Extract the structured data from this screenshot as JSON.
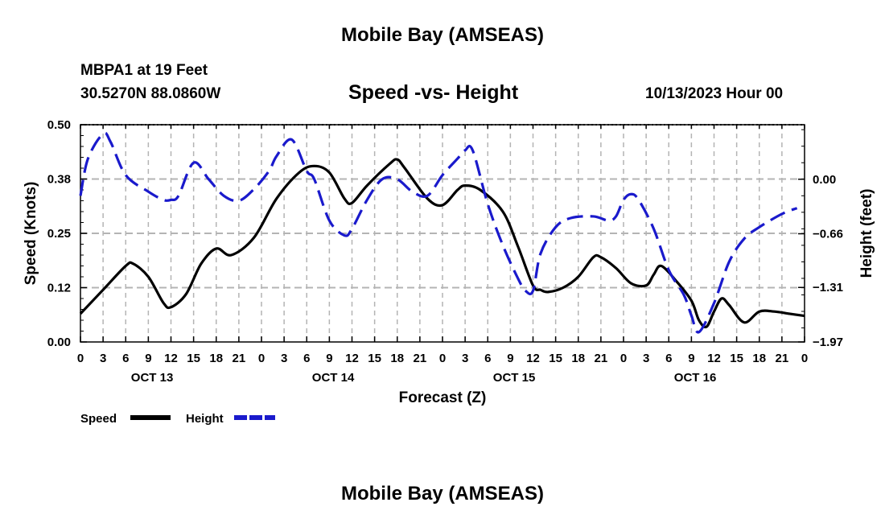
{
  "header": {
    "title": "Mobile Bay (AMSEAS)",
    "station": "MBPA1 at 19 Feet",
    "coordinates": "30.5270N  88.0860W",
    "subtitle": "Speed -vs- Height",
    "datetime": "10/13/2023 Hour 00"
  },
  "footer": {
    "title": "Mobile Bay (AMSEAS)"
  },
  "colors": {
    "speed": "#000000",
    "height": "#1a1acc",
    "grid": "#b4b4b4"
  },
  "chart_data": {
    "type": "line",
    "title": "Speed -vs- Height",
    "xlabel": "Forecast (Z)",
    "ylabel": "Speed (Knots)",
    "y2label": "Height (feet)",
    "xlim": [
      0,
      96
    ],
    "ylim": [
      0,
      0.5
    ],
    "y2lim": [
      -1.97,
      0.66
    ],
    "yticks": [
      0.0,
      0.125,
      0.25,
      0.375,
      0.5
    ],
    "yticklabels": [
      "0.00",
      "0.12",
      "0.25",
      "0.38",
      "0.50"
    ],
    "y2ticks": [
      -1.97,
      -1.31,
      -0.66,
      0.0
    ],
    "y2ticklabels": [
      "−1.97",
      "−1.31",
      "−0.66",
      "0.00"
    ],
    "xticklabels": [
      "0",
      "3",
      "6",
      "9",
      "12",
      "15",
      "18",
      "21",
      "0",
      "3",
      "6",
      "9",
      "12",
      "15",
      "18",
      "21",
      "0",
      "3",
      "6",
      "9",
      "12",
      "15",
      "18",
      "21",
      "0",
      "3",
      "6",
      "9",
      "12",
      "15",
      "18",
      "21",
      "0"
    ],
    "days": [
      {
        "label": "OCT 13",
        "center": 9.5
      },
      {
        "label": "OCT 14",
        "center": 33.5
      },
      {
        "label": "OCT 15",
        "center": 57.5
      },
      {
        "label": "OCT 16",
        "center": 81.5
      }
    ],
    "grid": true,
    "legend_position": "bottom-left",
    "series": [
      {
        "name": "Speed",
        "axis": "left",
        "style": "solid",
        "points": [
          [
            0,
            0.065
          ],
          [
            3,
            0.12
          ],
          [
            6,
            0.175
          ],
          [
            7,
            0.18
          ],
          [
            9,
            0.15
          ],
          [
            11,
            0.09
          ],
          [
            12,
            0.08
          ],
          [
            14,
            0.11
          ],
          [
            16,
            0.18
          ],
          [
            18,
            0.215
          ],
          [
            20,
            0.2
          ],
          [
            23,
            0.24
          ],
          [
            26,
            0.33
          ],
          [
            29,
            0.39
          ],
          [
            31,
            0.405
          ],
          [
            33,
            0.39
          ],
          [
            35,
            0.33
          ],
          [
            36,
            0.32
          ],
          [
            38,
            0.36
          ],
          [
            41,
            0.41
          ],
          [
            42,
            0.42
          ],
          [
            43,
            0.4
          ],
          [
            46,
            0.33
          ],
          [
            48,
            0.315
          ],
          [
            50,
            0.35
          ],
          [
            51,
            0.36
          ],
          [
            53,
            0.35
          ],
          [
            56,
            0.3
          ],
          [
            58,
            0.22
          ],
          [
            60,
            0.13
          ],
          [
            61,
            0.12
          ],
          [
            62,
            0.115
          ],
          [
            64,
            0.125
          ],
          [
            66,
            0.15
          ],
          [
            68,
            0.195
          ],
          [
            69,
            0.195
          ],
          [
            71,
            0.17
          ],
          [
            73,
            0.135
          ],
          [
            75,
            0.13
          ],
          [
            76,
            0.155
          ],
          [
            77,
            0.175
          ],
          [
            79,
            0.14
          ],
          [
            81,
            0.095
          ],
          [
            82,
            0.05
          ],
          [
            83,
            0.035
          ],
          [
            84,
            0.07
          ],
          [
            85,
            0.1
          ],
          [
            86,
            0.085
          ],
          [
            88,
            0.045
          ],
          [
            90,
            0.07
          ],
          [
            92,
            0.07
          ],
          [
            94,
            0.065
          ],
          [
            96,
            0.06
          ]
        ]
      },
      {
        "name": "Height",
        "axis": "right",
        "style": "dashed",
        "points": [
          [
            0,
            -0.2
          ],
          [
            1,
            0.25
          ],
          [
            3,
            0.55
          ],
          [
            4,
            0.45
          ],
          [
            6,
            0.05
          ],
          [
            9,
            -0.15
          ],
          [
            11,
            -0.25
          ],
          [
            12,
            -0.25
          ],
          [
            13,
            -0.2
          ],
          [
            15,
            0.2
          ],
          [
            17,
            0.0
          ],
          [
            19,
            -0.2
          ],
          [
            21,
            -0.26
          ],
          [
            23,
            -0.12
          ],
          [
            25,
            0.1
          ],
          [
            26,
            0.28
          ],
          [
            28,
            0.48
          ],
          [
            30,
            0.1
          ],
          [
            31,
            0.0
          ],
          [
            33,
            -0.5
          ],
          [
            35,
            -0.68
          ],
          [
            36,
            -0.6
          ],
          [
            38,
            -0.25
          ],
          [
            40,
            0.0
          ],
          [
            42,
            0.0
          ],
          [
            44,
            -0.15
          ],
          [
            46,
            -0.2
          ],
          [
            48,
            0.05
          ],
          [
            50,
            0.25
          ],
          [
            51,
            0.35
          ],
          [
            52,
            0.35
          ],
          [
            54,
            -0.3
          ],
          [
            56,
            -0.8
          ],
          [
            58,
            -1.2
          ],
          [
            59,
            -1.35
          ],
          [
            60,
            -1.35
          ],
          [
            61,
            -0.9
          ],
          [
            63,
            -0.58
          ],
          [
            65,
            -0.47
          ],
          [
            68,
            -0.45
          ],
          [
            70,
            -0.5
          ],
          [
            71,
            -0.45
          ],
          [
            72,
            -0.25
          ],
          [
            73,
            -0.18
          ],
          [
            74,
            -0.25
          ],
          [
            76,
            -0.6
          ],
          [
            78,
            -1.1
          ],
          [
            80,
            -1.4
          ],
          [
            81,
            -1.65
          ],
          [
            82,
            -1.85
          ],
          [
            84,
            -1.5
          ],
          [
            86,
            -1.0
          ],
          [
            88,
            -0.72
          ],
          [
            90,
            -0.58
          ],
          [
            93,
            -0.42
          ],
          [
            95,
            -0.35
          ]
        ]
      }
    ],
    "legend": [
      {
        "label": "Speed",
        "series": "Speed"
      },
      {
        "label": "Height",
        "series": "Height"
      }
    ]
  }
}
